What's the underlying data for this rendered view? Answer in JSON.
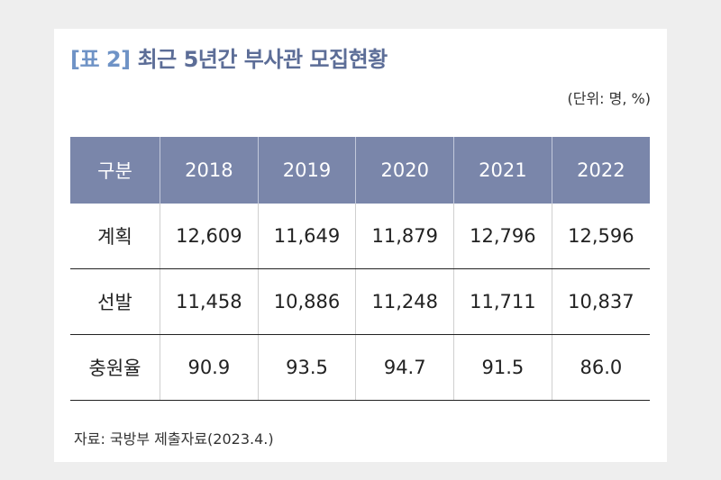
{
  "title": {
    "tag": "[표 2]",
    "text": "최근 5년간 부사관 모집현황"
  },
  "unit": "(단위: 명, %)",
  "table": {
    "header": {
      "category": "구분",
      "years": [
        "2018",
        "2019",
        "2020",
        "2021",
        "2022"
      ]
    },
    "rows": [
      {
        "label": "계획",
        "values": [
          "12,609",
          "11,649",
          "11,879",
          "12,796",
          "12,596"
        ]
      },
      {
        "label": "선발",
        "values": [
          "11,458",
          "10,886",
          "11,248",
          "11,711",
          "10,837"
        ]
      },
      {
        "label": "충원율",
        "values": [
          "90.9",
          "93.5",
          "94.7",
          "91.5",
          "86.0"
        ]
      }
    ]
  },
  "source": "자료:  국방부 제출자료(2023.4.)"
}
